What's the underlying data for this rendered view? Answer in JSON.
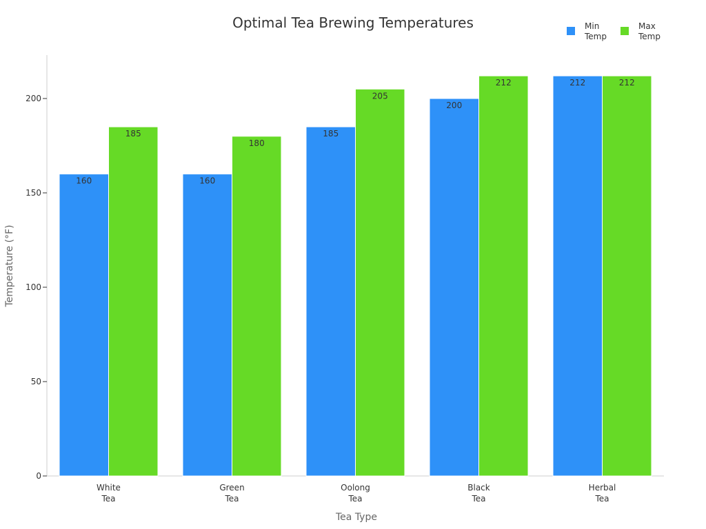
{
  "chart_data": {
    "type": "bar",
    "title": "Optimal Tea Brewing Temperatures",
    "xlabel": "Tea Type",
    "ylabel": "Temperature (°F)",
    "categories": [
      [
        "White",
        "Tea"
      ],
      [
        "Green",
        "Tea"
      ],
      [
        "Oolong",
        "Tea"
      ],
      [
        "Black",
        "Tea"
      ],
      [
        "Herbal",
        "Tea"
      ]
    ],
    "series": [
      {
        "name": [
          "Min",
          "Temp"
        ],
        "values": [
          160,
          160,
          185,
          200,
          212
        ],
        "color": "#2E91F8"
      },
      {
        "name": [
          "Max",
          "Temp"
        ],
        "values": [
          185,
          180,
          205,
          212,
          212
        ],
        "color": "#66DA26"
      }
    ],
    "yticks": [
      0,
      50,
      100,
      150,
      200
    ],
    "ylim": [
      0,
      223
    ],
    "grid": false,
    "legend_position": "top-right"
  }
}
